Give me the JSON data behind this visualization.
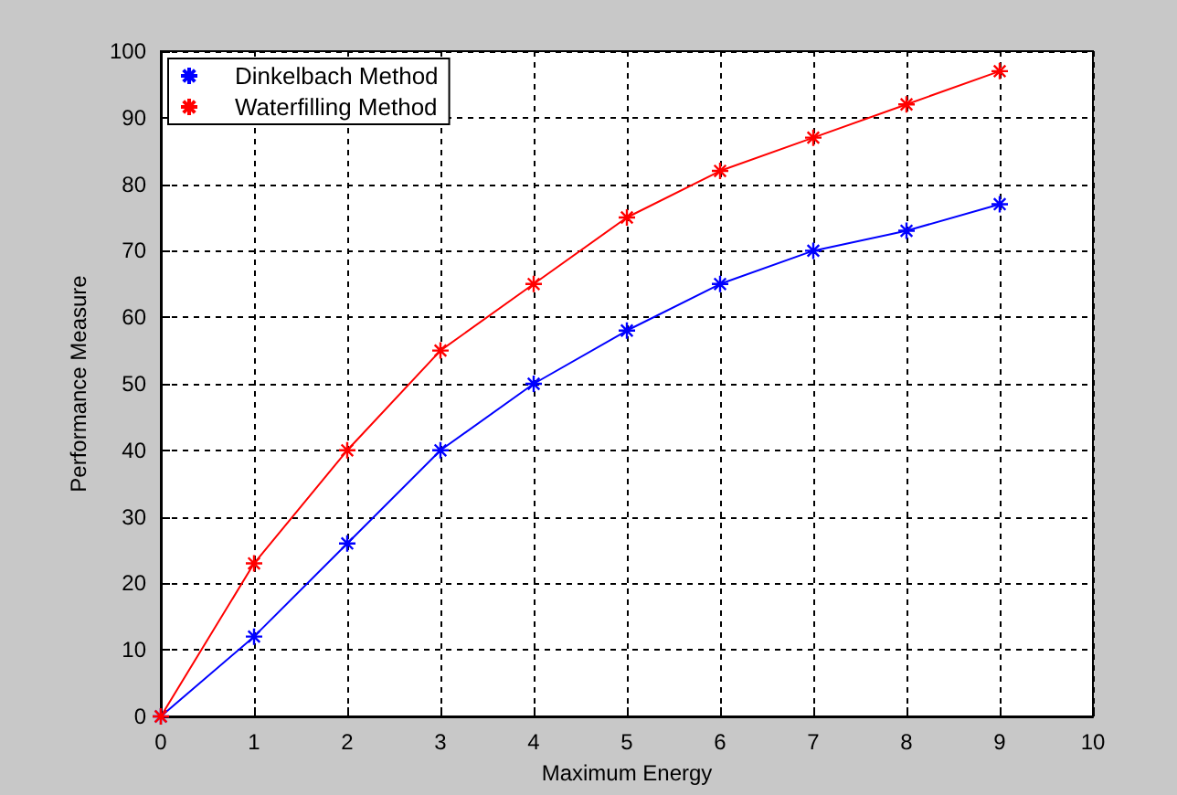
{
  "chart_data": {
    "type": "line",
    "xlabel": "Maximum Energy",
    "ylabel": "Performance Measure",
    "x": [
      0,
      1,
      2,
      3,
      4,
      5,
      6,
      7,
      8,
      9
    ],
    "series": [
      {
        "name": "Dinkelbach Method",
        "color": "#0000ff",
        "values": [
          0,
          12,
          26,
          40,
          50,
          58,
          65,
          70,
          73,
          77
        ]
      },
      {
        "name": "Waterfilling Method",
        "color": "#ff0000",
        "values": [
          0,
          23,
          40,
          55,
          65,
          75,
          82,
          87,
          92,
          97
        ]
      }
    ],
    "xlim": [
      0,
      10
    ],
    "xticks": [
      0,
      1,
      2,
      3,
      4,
      5,
      6,
      7,
      8,
      9,
      10
    ],
    "ylim": [
      0,
      100
    ],
    "yticks": [
      0,
      10,
      20,
      30,
      40,
      50,
      60,
      70,
      80,
      90,
      100
    ],
    "grid": true,
    "legend": "top left",
    "marker": "cross",
    "line_style": "solid"
  }
}
